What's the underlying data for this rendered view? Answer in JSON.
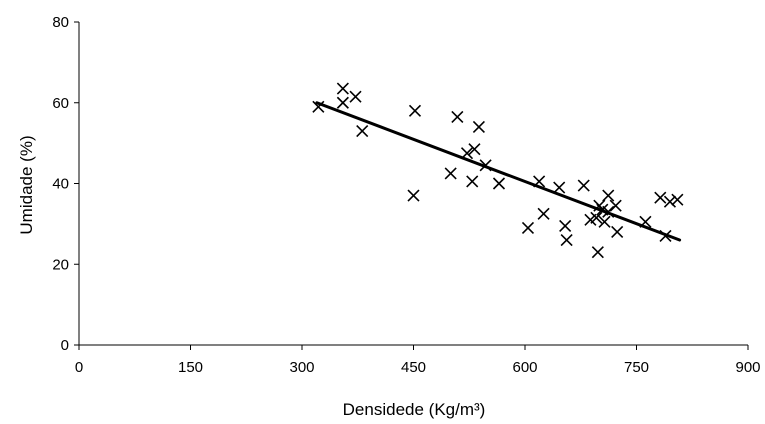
{
  "chart_data": {
    "type": "scatter",
    "xlabel": "Densidede (Kg/m³)",
    "ylabel": "Umidade (%)",
    "xlim": [
      0,
      900
    ],
    "ylim": [
      0,
      80
    ],
    "xticks": [
      0,
      150,
      300,
      450,
      600,
      750,
      900
    ],
    "yticks": [
      0,
      20,
      40,
      60,
      80
    ],
    "xtick_labels": [
      "0",
      "150",
      "300",
      "450",
      "600",
      "750",
      "900"
    ],
    "ytick_labels": [
      "0",
      "20",
      "40",
      "60",
      "80"
    ],
    "grid": false,
    "marker": "x",
    "points": [
      {
        "x": 322,
        "y": 59
      },
      {
        "x": 355,
        "y": 63.5
      },
      {
        "x": 355,
        "y": 60
      },
      {
        "x": 372,
        "y": 61.5
      },
      {
        "x": 381,
        "y": 53
      },
      {
        "x": 452,
        "y": 58
      },
      {
        "x": 450,
        "y": 37
      },
      {
        "x": 500,
        "y": 42.5
      },
      {
        "x": 509,
        "y": 56.5
      },
      {
        "x": 522,
        "y": 47.5
      },
      {
        "x": 532,
        "y": 48.5
      },
      {
        "x": 538,
        "y": 54
      },
      {
        "x": 529,
        "y": 40.5
      },
      {
        "x": 547,
        "y": 44.5
      },
      {
        "x": 565,
        "y": 40
      },
      {
        "x": 604,
        "y": 29
      },
      {
        "x": 619,
        "y": 40.5
      },
      {
        "x": 625,
        "y": 32.5
      },
      {
        "x": 646,
        "y": 39
      },
      {
        "x": 654,
        "y": 29.5
      },
      {
        "x": 656,
        "y": 26
      },
      {
        "x": 679,
        "y": 39.5
      },
      {
        "x": 688,
        "y": 31
      },
      {
        "x": 696,
        "y": 31.5
      },
      {
        "x": 700,
        "y": 34.5
      },
      {
        "x": 704,
        "y": 33.5
      },
      {
        "x": 707,
        "y": 30.5
      },
      {
        "x": 712,
        "y": 37
      },
      {
        "x": 712,
        "y": 33
      },
      {
        "x": 722,
        "y": 34.5
      },
      {
        "x": 724,
        "y": 28
      },
      {
        "x": 698,
        "y": 23
      },
      {
        "x": 762,
        "y": 30.5
      },
      {
        "x": 782,
        "y": 36.5
      },
      {
        "x": 789,
        "y": 27
      },
      {
        "x": 795,
        "y": 35.5
      },
      {
        "x": 805,
        "y": 36
      }
    ],
    "trendline": {
      "x": [
        320,
        808
      ],
      "y": [
        60,
        26
      ]
    }
  },
  "colors": {
    "axis": "#000000",
    "marker": "#000000",
    "trendline": "#000000",
    "background": "#ffffff"
  }
}
